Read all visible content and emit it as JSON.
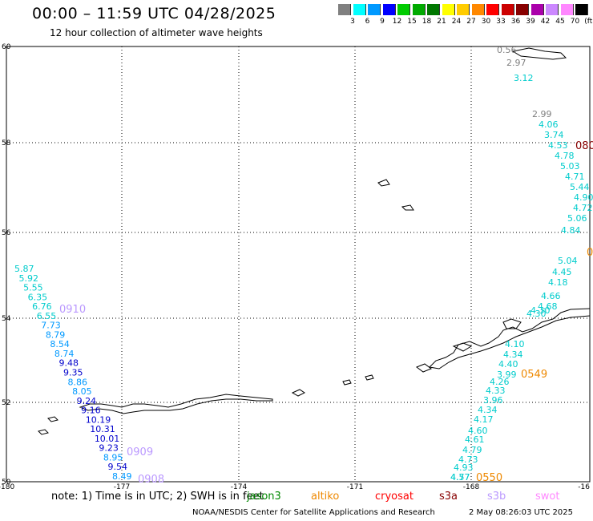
{
  "header": {
    "title": "00:00 – 11:59 UTC 04/28/2025",
    "subtitle": "12 hour collection of altimeter wave heights"
  },
  "colorbar": {
    "unit_label": "(ft)",
    "bins": [
      {
        "label": "3",
        "color": "#808080"
      },
      {
        "label": "6",
        "color": "#00ffff"
      },
      {
        "label": "9",
        "color": "#0099ff"
      },
      {
        "label": "12",
        "color": "#0000ff"
      },
      {
        "label": "15",
        "color": "#00cc00"
      },
      {
        "label": "18",
        "color": "#00aa00"
      },
      {
        "label": "21",
        "color": "#007700"
      },
      {
        "label": "24",
        "color": "#ffff00"
      },
      {
        "label": "27",
        "color": "#ffcc00"
      },
      {
        "label": "30",
        "color": "#ff8800"
      },
      {
        "label": "33",
        "color": "#ff0000"
      },
      {
        "label": "36",
        "color": "#cc0000"
      },
      {
        "label": "39",
        "color": "#880000"
      },
      {
        "label": "42",
        "color": "#aa00aa"
      },
      {
        "label": "45",
        "color": "#cc88ff"
      },
      {
        "label": "70",
        "color": "#ff88ff"
      },
      {
        "label": "(ft)",
        "color": "#000000"
      }
    ]
  },
  "map": {
    "lat_ticks": [
      "60",
      "58",
      "56",
      "54",
      "52",
      "50"
    ],
    "lon_ticks": [
      "-180",
      "-177",
      "-174",
      "-171",
      "-168",
      "-16"
    ],
    "track_west": [
      {
        "v": "5.87",
        "c": "#00cccc"
      },
      {
        "v": "5.92",
        "c": "#00cccc"
      },
      {
        "v": "5.55",
        "c": "#00cccc"
      },
      {
        "v": "6.35",
        "c": "#00cccc"
      },
      {
        "v": "6.76",
        "c": "#00cccc"
      },
      {
        "v": "6.55",
        "c": "#00cccc"
      },
      {
        "v": "7.73",
        "c": "#0099ff"
      },
      {
        "v": "8.79",
        "c": "#0099ff"
      },
      {
        "v": "8.54",
        "c": "#0099ff"
      },
      {
        "v": "8.74",
        "c": "#0099ff"
      },
      {
        "v": "9.48",
        "c": "#0000cc"
      },
      {
        "v": "9.35",
        "c": "#0000cc"
      },
      {
        "v": "8.86",
        "c": "#0099ff"
      },
      {
        "v": "8.05",
        "c": "#0099ff"
      },
      {
        "v": "9.24",
        "c": "#0000cc"
      },
      {
        "v": "9.16",
        "c": "#0000cc"
      },
      {
        "v": "10.19",
        "c": "#0000cc"
      },
      {
        "v": "10.31",
        "c": "#0000cc"
      },
      {
        "v": "10.01",
        "c": "#0000cc"
      },
      {
        "v": "9.23",
        "c": "#0000cc"
      },
      {
        "v": "8.95",
        "c": "#0099ff"
      },
      {
        "v": "9.54",
        "c": "#0000cc"
      },
      {
        "v": "8.49",
        "c": "#0099ff"
      }
    ],
    "track_east": [
      {
        "v": "0.56",
        "c": "#808080"
      },
      {
        "v": "2.97",
        "c": "#808080"
      },
      {
        "v": "3.12",
        "c": "#00cccc"
      },
      {
        "v": "2.99",
        "c": "#808080"
      },
      {
        "v": "4.06",
        "c": "#00cccc"
      },
      {
        "v": "3.74",
        "c": "#00cccc"
      },
      {
        "v": "4.53",
        "c": "#00cccc"
      },
      {
        "v": "4.78",
        "c": "#00cccc"
      },
      {
        "v": "5.03",
        "c": "#00cccc"
      },
      {
        "v": "4.71",
        "c": "#00cccc"
      },
      {
        "v": "5.44",
        "c": "#00cccc"
      },
      {
        "v": "4.90",
        "c": "#00cccc"
      },
      {
        "v": "4.72",
        "c": "#00cccc"
      },
      {
        "v": "5.06",
        "c": "#00cccc"
      },
      {
        "v": "4.84",
        "c": "#00cccc"
      },
      {
        "v": "5.04",
        "c": "#00cccc"
      },
      {
        "v": "4.45",
        "c": "#00cccc"
      },
      {
        "v": "4.18",
        "c": "#00cccc"
      },
      {
        "v": "4.66",
        "c": "#00cccc"
      },
      {
        "v": "4.68",
        "c": "#00cccc"
      },
      {
        "v": "4.30",
        "c": "#00cccc"
      },
      {
        "v": "4.30",
        "c": "#00cccc"
      },
      {
        "v": "4.10",
        "c": "#00cccc"
      },
      {
        "v": "4.34",
        "c": "#00cccc"
      },
      {
        "v": "4.40",
        "c": "#00cccc"
      },
      {
        "v": "3.99",
        "c": "#00cccc"
      },
      {
        "v": "4.26",
        "c": "#00cccc"
      },
      {
        "v": "4.33",
        "c": "#00cccc"
      },
      {
        "v": "3.96",
        "c": "#00cccc"
      },
      {
        "v": "4.34",
        "c": "#00cccc"
      },
      {
        "v": "4.17",
        "c": "#00cccc"
      },
      {
        "v": "4.60",
        "c": "#00cccc"
      },
      {
        "v": "4.61",
        "c": "#00cccc"
      },
      {
        "v": "4.79",
        "c": "#00cccc"
      },
      {
        "v": "4.73",
        "c": "#00cccc"
      },
      {
        "v": "4.93",
        "c": "#00cccc"
      },
      {
        "v": "4.57",
        "c": "#00cccc"
      },
      {
        "v": "4.77",
        "c": "#00cccc"
      }
    ],
    "time_labels": [
      {
        "t": "0910",
        "c": "#bb99ff"
      },
      {
        "t": "0909",
        "c": "#bb99ff"
      },
      {
        "t": "0908",
        "c": "#bb99ff"
      },
      {
        "t": "0549",
        "c": "#ee8800"
      },
      {
        "t": "0550",
        "c": "#ee8800"
      },
      {
        "t": "080",
        "c": "#880000"
      },
      {
        "t": "0",
        "c": "#ee8800"
      }
    ]
  },
  "footer": {
    "note": "note: 1) Time is in UTC; 2) SWH is in feet",
    "satellites": [
      {
        "name": "jason3",
        "color": "#008800"
      },
      {
        "name": "altiko",
        "color": "#ee8800"
      },
      {
        "name": "cryosat",
        "color": "#ff0000"
      },
      {
        "name": "s3a",
        "color": "#880000"
      },
      {
        "name": "s3b",
        "color": "#bb99ff"
      },
      {
        "name": "swot",
        "color": "#ff88ff"
      }
    ],
    "credit": "NOAA/NESDIS Center for Satellite Applications and Research",
    "generated": "2 May 08:26:03 UTC 2025"
  }
}
